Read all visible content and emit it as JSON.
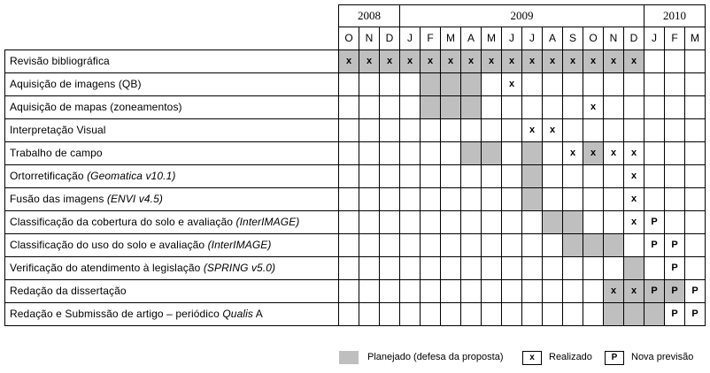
{
  "years": [
    {
      "label": "2008",
      "span": 3
    },
    {
      "label": "2009",
      "span": 12
    },
    {
      "label": "2010",
      "span": 3
    }
  ],
  "months": [
    "O",
    "N",
    "D",
    "J",
    "F",
    "M",
    "A",
    "M",
    "J",
    "J",
    "A",
    "S",
    "O",
    "N",
    "D",
    "J",
    "F",
    "M"
  ],
  "tasks": [
    {
      "label": "Revisão bibliográfica",
      "tool": "",
      "planned": [
        0,
        1,
        2,
        3,
        4,
        5,
        6,
        7,
        8,
        9,
        10,
        11,
        12,
        13,
        14
      ],
      "marks": {
        "0": "x",
        "1": "x",
        "2": "x",
        "3": "x",
        "4": "x",
        "5": "x",
        "6": "x",
        "7": "x",
        "8": "x",
        "9": "x",
        "10": "x",
        "11": "x",
        "12": "x",
        "13": "x",
        "14": "x"
      }
    },
    {
      "label": "Aquisição de imagens (QB)",
      "tool": "",
      "planned": [
        4,
        5,
        6
      ],
      "marks": {
        "8": "x"
      }
    },
    {
      "label": "Aquisição de mapas (zoneamentos)",
      "tool": "",
      "planned": [
        4,
        5,
        6
      ],
      "marks": {
        "12": "x"
      }
    },
    {
      "label": "Interpretação Visual",
      "tool": "",
      "planned": [],
      "marks": {
        "9": "x",
        "10": "x"
      }
    },
    {
      "label": "Trabalho de campo",
      "tool": "",
      "planned": [
        6,
        7,
        9,
        12
      ],
      "marks": {
        "11": "x",
        "12": "x",
        "13": "x",
        "14": "x"
      }
    },
    {
      "label": "Ortorretificação ",
      "tool": "(Geomatica v10.1)",
      "planned": [
        9
      ],
      "marks": {
        "14": "x"
      }
    },
    {
      "label": "Fusão das imagens ",
      "tool": "(ENVI v4.5)",
      "planned": [
        9
      ],
      "marks": {
        "14": "x"
      }
    },
    {
      "label": "Classificação da cobertura do solo e avaliação ",
      "tool": "(InterIMAGE)",
      "planned": [
        10,
        11
      ],
      "marks": {
        "14": "x",
        "15": "P"
      }
    },
    {
      "label": "Classificação do uso do solo e avaliação ",
      "tool": "(InterIMAGE)",
      "planned": [
        11,
        12,
        13
      ],
      "marks": {
        "15": "P",
        "16": "P"
      }
    },
    {
      "label": "Verificação do atendimento à legislação ",
      "tool": "(SPRING v5.0)",
      "planned": [
        14
      ],
      "marks": {
        "16": "P"
      }
    },
    {
      "label": "Redação da dissertação",
      "tool": "",
      "planned": [
        13,
        14,
        15,
        16
      ],
      "marks": {
        "13": "x",
        "14": "x",
        "15": "P",
        "16": "P",
        "17": "P"
      }
    },
    {
      "label": "Redação e Submissão de artigo – periódico ",
      "tool": "Qualis",
      "tool_after": " A",
      "planned": [
        13,
        14,
        15
      ],
      "marks": {
        "16": "P",
        "17": "P"
      }
    }
  ],
  "legend": {
    "planned_label": "Planejado (defesa da proposta)",
    "done_symbol": "x",
    "done_label": "Realizado",
    "forecast_symbol": "P",
    "forecast_label": "Nova previsão"
  },
  "colors": {
    "planned": "#bfbfbf",
    "border": "#000000"
  }
}
